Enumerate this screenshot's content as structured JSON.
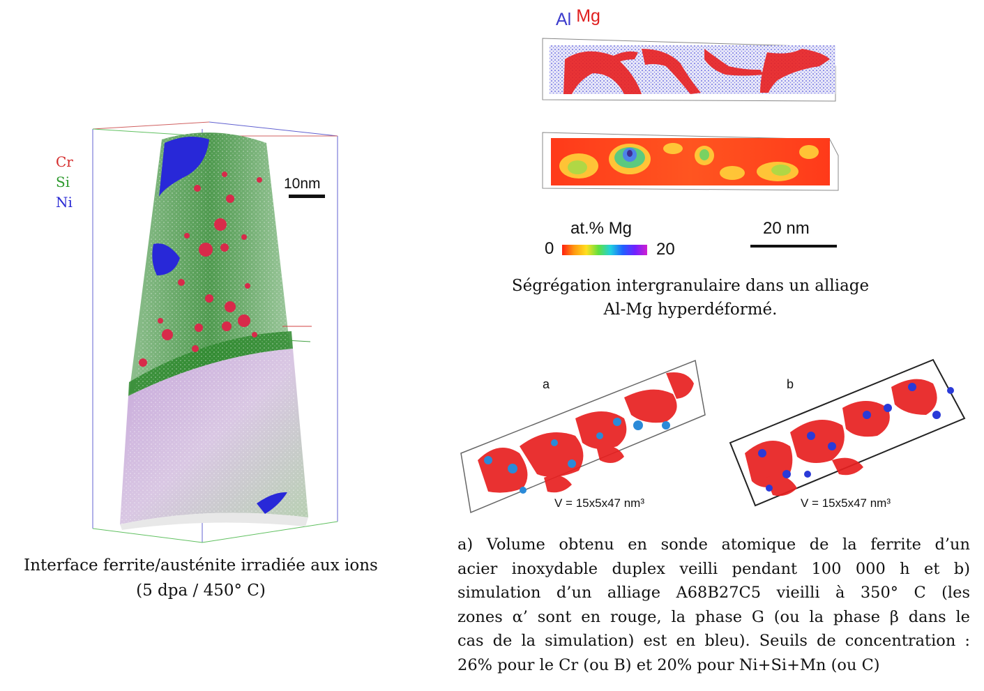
{
  "left_figure": {
    "legend": [
      {
        "label": "Cr",
        "color": "#d42a2a"
      },
      {
        "label": "Si",
        "color": "#2e9a2e"
      },
      {
        "label": "Ni",
        "color": "#2a2ad4"
      }
    ],
    "scale_label": "10nm",
    "caption_line1": "Interface ferrite/austénite irradiée aux ions",
    "caption_line2": "(5 dpa / 450° C)"
  },
  "top_right_figure": {
    "legend": [
      {
        "label": "Al",
        "color": "#3c3ccc"
      },
      {
        "label": "Mg",
        "color": "#e02020"
      }
    ],
    "colorbar_title": "at.% Mg",
    "colorbar_min": "0",
    "colorbar_max": "20",
    "scale_label": "20 nm",
    "caption_line1": "Ségrégation intergranulaire dans un alliage",
    "caption_line2": "Al-Mg hyperdéformé."
  },
  "bottom_right_figure": {
    "panels": [
      {
        "label": "a",
        "volume": "V = 15x5x47 nm³"
      },
      {
        "label": "b",
        "volume": "V = 15x5x47 nm³"
      }
    ],
    "caption_lines": [
      "a) Volume obtenu en sonde atomique de la ferrite d’un",
      "acier inoxydable duplex veilli pendant 100 000 h et b)",
      "simulation d’un alliage A68B27C5 vieilli à 350° C (les",
      "zones α’ sont en rouge, la phase G (ou la phase β dans le",
      "cas de la simulation) est en bleu). Seuils de concentration :",
      "26% pour le Cr (ou B) et 20% pour Ni+Si+Mn (ou C)"
    ]
  }
}
